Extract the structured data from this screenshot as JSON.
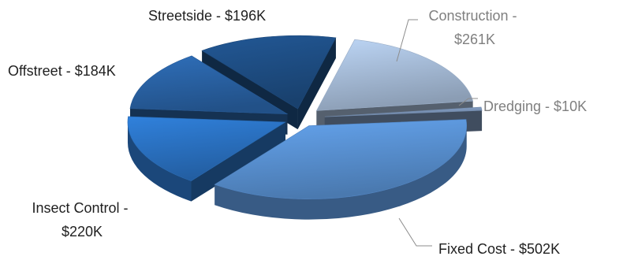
{
  "chart_data": {
    "type": "pie",
    "title": "",
    "style": "3d-exploded",
    "slices": [
      {
        "label": "Construction - $261K",
        "value": 261,
        "color": "#a9bfdc",
        "text_color": "#7f7f7f"
      },
      {
        "label": "Dredging - $10K",
        "value": 10,
        "color": "#7f99bd",
        "text_color": "#7f7f7f"
      },
      {
        "label": "Fixed Cost - $502K",
        "value": 502,
        "color": "#5a93d6",
        "text_color": "#1f1f1f"
      },
      {
        "label": "Insect Control - $220K",
        "value": 220,
        "color": "#2b73c4",
        "text_color": "#1f1f1f"
      },
      {
        "label": "Offstreet - $184K",
        "value": 184,
        "color": "#2a63a6",
        "text_color": "#1f1f1f"
      },
      {
        "label": "Streetside - $196K",
        "value": 196,
        "color": "#1e4f86",
        "text_color": "#1f1f1f"
      }
    ]
  }
}
